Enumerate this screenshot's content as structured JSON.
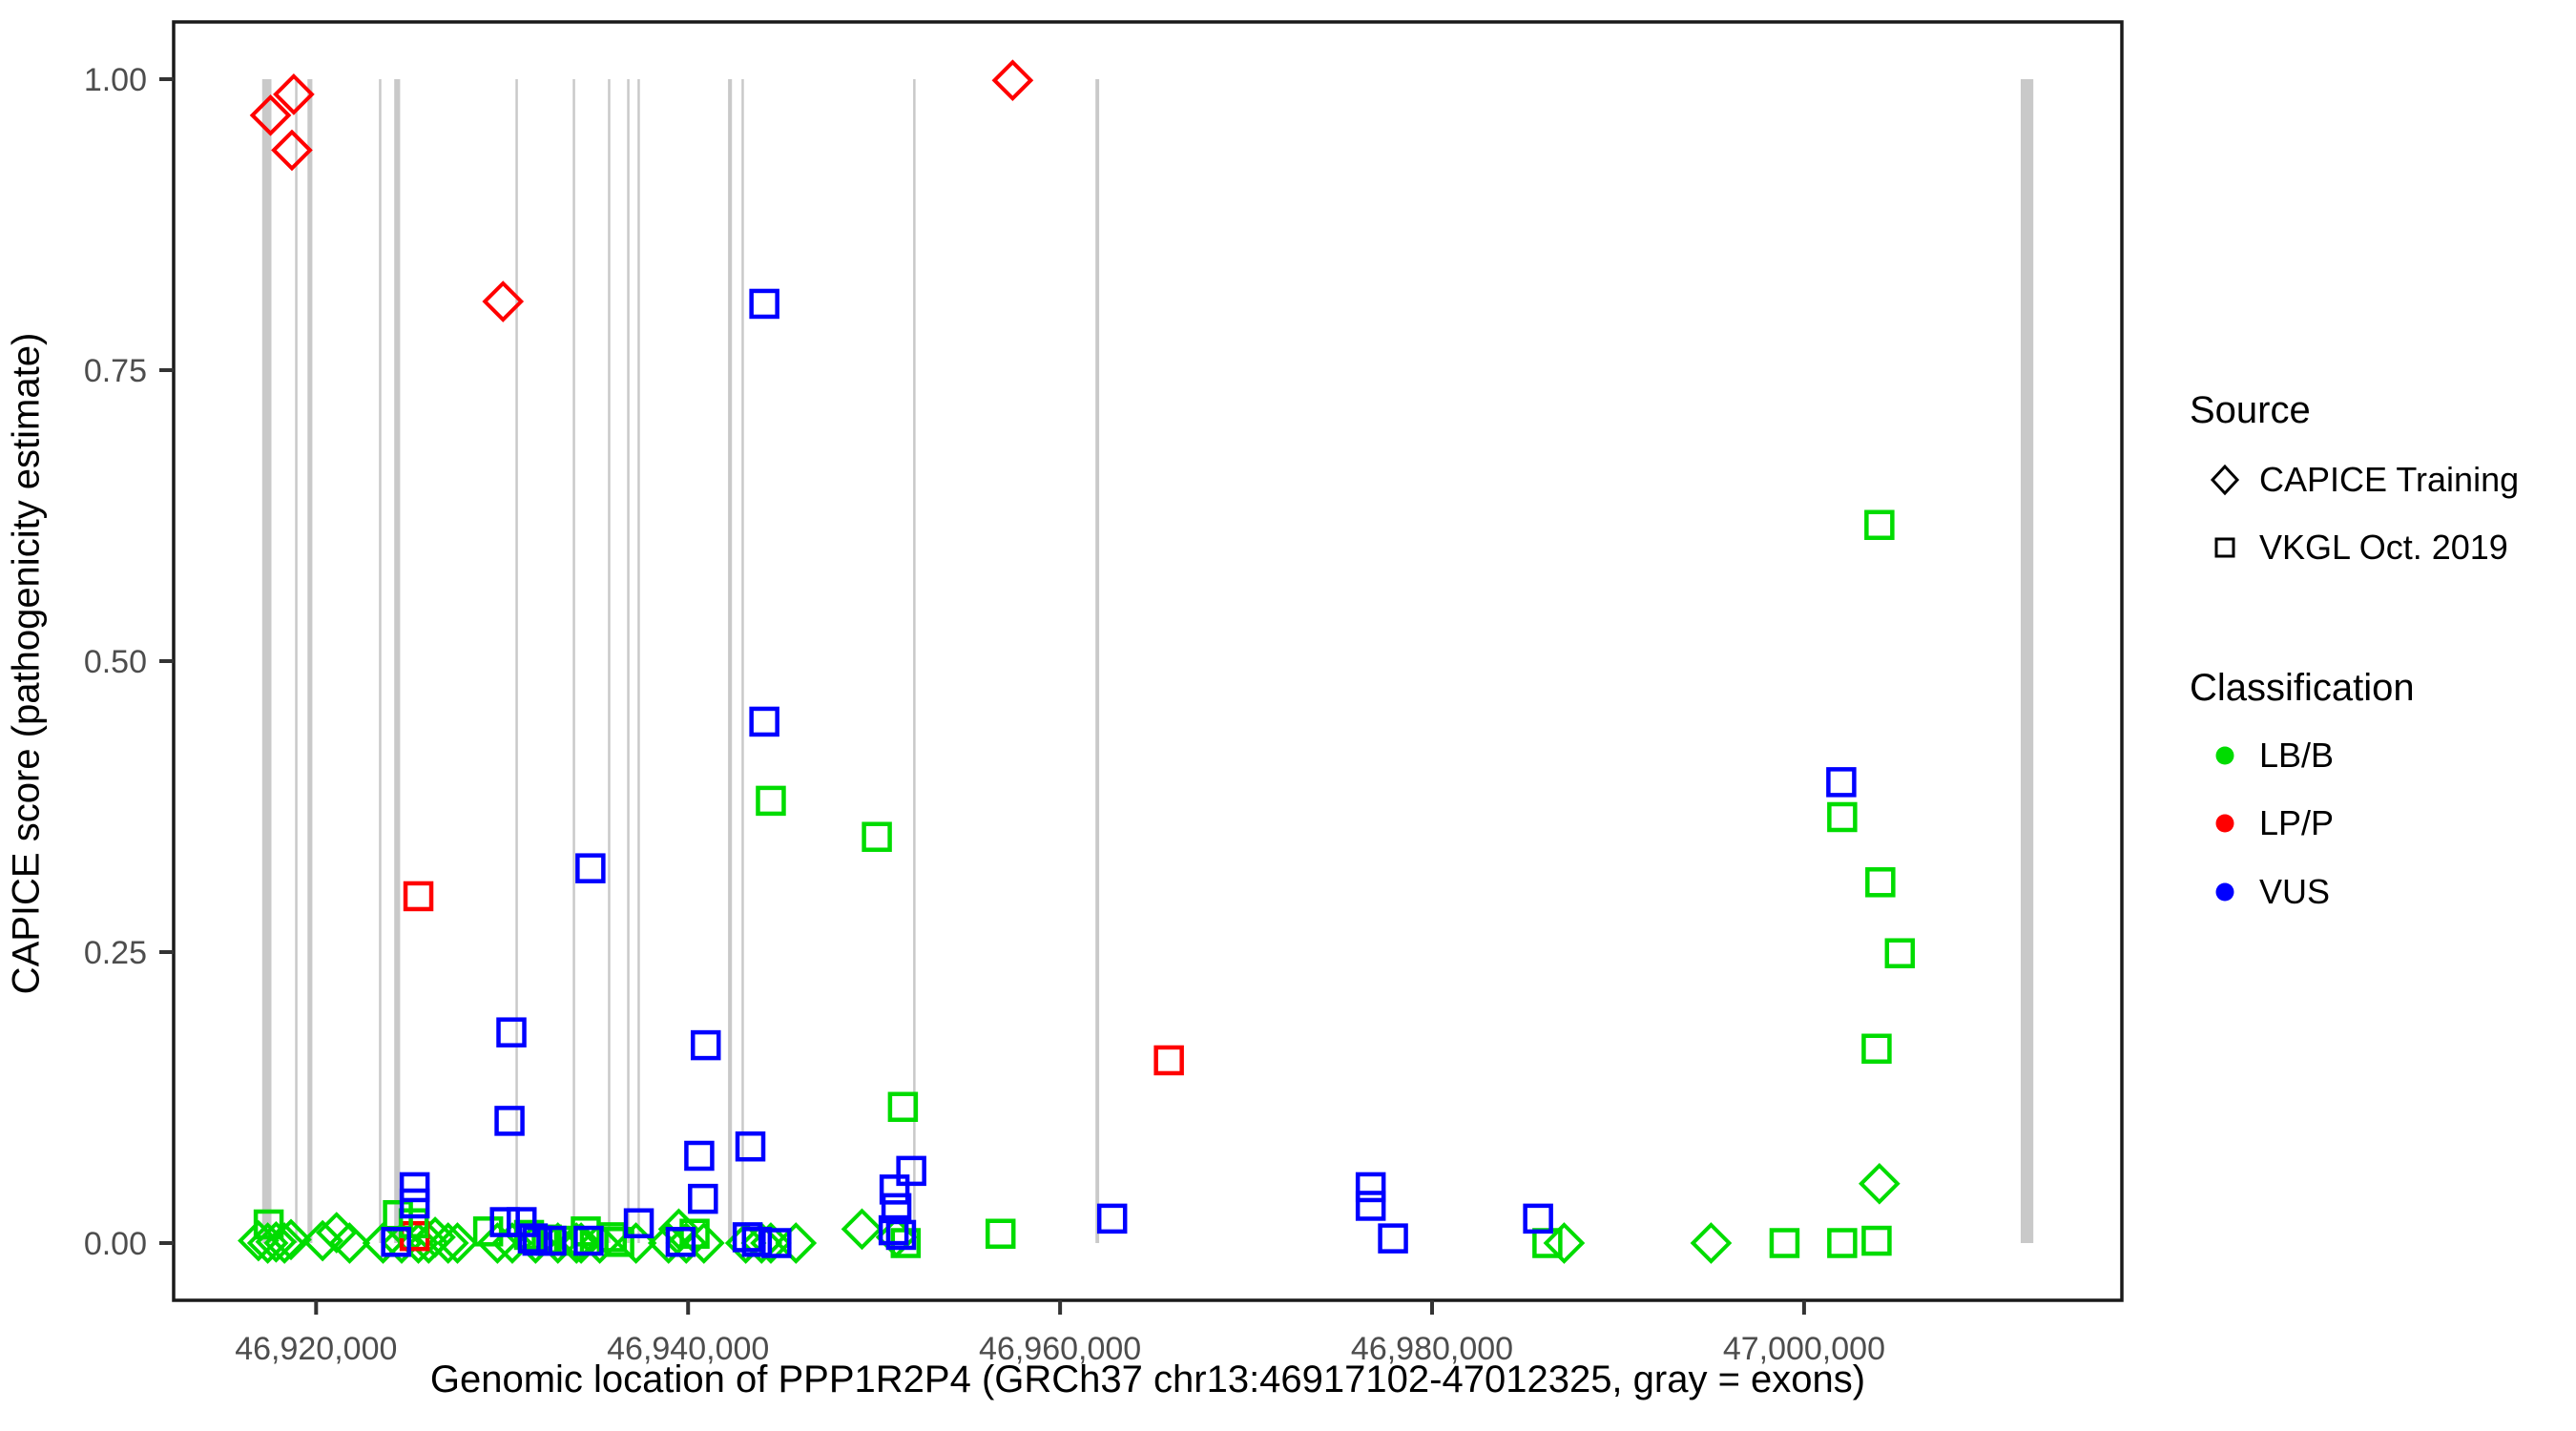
{
  "chart_data": {
    "type": "scatter",
    "title": "",
    "xlabel": "Genomic location of PPP1R2P4 (GRCh37 chr13:46917102-47012325, gray = exons)",
    "ylabel": "CAPICE score (pathogenicity estimate)",
    "xlim": [
      46912341,
      47017086
    ],
    "ylim": [
      -0.05,
      1.05
    ],
    "grid": false,
    "x_ticks": [
      {
        "value": 46920000,
        "label": "46,920,000"
      },
      {
        "value": 46940000,
        "label": "46,940,000"
      },
      {
        "value": 46960000,
        "label": "46,960,000"
      },
      {
        "value": 46980000,
        "label": "46,980,000"
      },
      {
        "value": 47000000,
        "label": "47,000,000"
      }
    ],
    "y_ticks": [
      {
        "value": 0.0,
        "label": "0.00"
      },
      {
        "value": 0.25,
        "label": "0.25"
      },
      {
        "value": 0.5,
        "label": "0.50"
      },
      {
        "value": 0.75,
        "label": "0.75"
      },
      {
        "value": 1.0,
        "label": "1.00"
      }
    ],
    "exon_color": "#C9C9C9",
    "exons": [
      {
        "start": 46917102,
        "end": 46917600
      },
      {
        "start": 46918870,
        "end": 46918980
      },
      {
        "start": 46919540,
        "end": 46919800
      },
      {
        "start": 46923380,
        "end": 46923490
      },
      {
        "start": 46924200,
        "end": 46924520
      },
      {
        "start": 46930720,
        "end": 46930820
      },
      {
        "start": 46933800,
        "end": 46933900
      },
      {
        "start": 46935690,
        "end": 46935800
      },
      {
        "start": 46936720,
        "end": 46936820
      },
      {
        "start": 46937280,
        "end": 46937390
      },
      {
        "start": 46942150,
        "end": 46942360
      },
      {
        "start": 46942870,
        "end": 46942980
      },
      {
        "start": 46952100,
        "end": 46952210
      },
      {
        "start": 46961900,
        "end": 46962100
      },
      {
        "start": 47011650,
        "end": 47012325
      }
    ],
    "class_colors": {
      "LB/B": "#00DC00",
      "LP/P": "#FF0000",
      "VUS": "#0000FF"
    },
    "series": [
      {
        "name": "CAPICE Training",
        "shape": "diamond",
        "groups": [
          {
            "class": "LP/P",
            "points": [
              [
                46917550,
                0.969
              ],
              [
                46918800,
                0.987
              ],
              [
                46918700,
                0.939
              ],
              [
                46930050,
                0.809
              ],
              [
                46957450,
                0.999
              ]
            ]
          },
          {
            "class": "LB/B",
            "points": [
              [
                46916900,
                0.002
              ],
              [
                46917400,
                0.0
              ],
              [
                46917850,
                0.001
              ],
              [
                46918300,
                0.0
              ],
              [
                46918650,
                0.003
              ],
              [
                46920350,
                0.002
              ],
              [
                46921100,
                0.009
              ],
              [
                46921800,
                0.0
              ],
              [
                46923600,
                0.0
              ],
              [
                46924600,
                0.0
              ],
              [
                46925500,
                0.0
              ],
              [
                46926050,
                0.0
              ],
              [
                46926400,
                0.005
              ],
              [
                46927100,
                0.0
              ],
              [
                46927600,
                0.0
              ],
              [
                46929750,
                0.0
              ],
              [
                46930550,
                0.0
              ],
              [
                46931800,
                0.0
              ],
              [
                46933000,
                0.0
              ],
              [
                46934000,
                0.0
              ],
              [
                46934250,
                0.0
              ],
              [
                46935250,
                0.0
              ],
              [
                46937200,
                0.0
              ],
              [
                46938950,
                0.0
              ],
              [
                46939500,
                0.012
              ],
              [
                46939900,
                0.0
              ],
              [
                46940850,
                0.0
              ],
              [
                46943100,
                0.0
              ],
              [
                46943950,
                0.0
              ],
              [
                46944450,
                0.0
              ],
              [
                46945800,
                0.0
              ],
              [
                46949350,
                0.012
              ],
              [
                46951200,
                0.005
              ],
              [
                46987100,
                0.0
              ],
              [
                46995000,
                0.0
              ],
              [
                47004050,
                0.051
              ]
            ]
          }
        ]
      },
      {
        "name": "VKGL Oct. 2019",
        "shape": "square",
        "groups": [
          {
            "class": "LP/P",
            "points": [
              [
                46925500,
                0.298
              ],
              [
                46925300,
                0.006
              ],
              [
                46965850,
                0.157
              ]
            ]
          },
          {
            "class": "LB/B",
            "points": [
              [
                46917450,
                0.016
              ],
              [
                46924400,
                0.024
              ],
              [
                46925250,
                0.017
              ],
              [
                46929250,
                0.01
              ],
              [
                46931450,
                0.007
              ],
              [
                46932400,
                0.003
              ],
              [
                46933600,
                0.002
              ],
              [
                46934500,
                0.01
              ],
              [
                46935900,
                0.005
              ],
              [
                46936300,
                0.001
              ],
              [
                46940350,
                0.008
              ],
              [
                46944450,
                0.38
              ],
              [
                46950150,
                0.349
              ],
              [
                46951550,
                0.117
              ],
              [
                46951700,
                0.0
              ],
              [
                46956800,
                0.008
              ],
              [
                46986200,
                0.0
              ],
              [
                46998950,
                0.0
              ],
              [
                47002050,
                0.366
              ],
              [
                47002050,
                0.0
              ],
              [
                47003900,
                0.167
              ],
              [
                47003900,
                0.002
              ],
              [
                47004050,
                0.617
              ],
              [
                47004100,
                0.31
              ],
              [
                47005150,
                0.249
              ]
            ]
          },
          {
            "class": "VUS",
            "points": [
              [
                46944100,
                0.807
              ],
              [
                46944100,
                0.448
              ],
              [
                46934750,
                0.322
              ],
              [
                46940950,
                0.17
              ],
              [
                46930500,
                0.181
              ],
              [
                46930400,
                0.105
              ],
              [
                46940600,
                0.075
              ],
              [
                46940800,
                0.038
              ],
              [
                46943350,
                0.083
              ],
              [
                46937350,
                0.017
              ],
              [
                46952000,
                0.062
              ],
              [
                46951100,
                0.046
              ],
              [
                46951200,
                0.03
              ],
              [
                46951050,
                0.011
              ],
              [
                46951450,
                0.007
              ],
              [
                46925300,
                0.048
              ],
              [
                46925300,
                0.034
              ],
              [
                46924300,
                0.001
              ],
              [
                46930150,
                0.018
              ],
              [
                46931050,
                0.018
              ],
              [
                46931650,
                0.004
              ],
              [
                46931900,
                0.002
              ],
              [
                46932650,
                0.002
              ],
              [
                46934650,
                0.002
              ],
              [
                46939600,
                0.001
              ],
              [
                46943200,
                0.005
              ],
              [
                46943700,
                0.001
              ],
              [
                46944750,
                0.0
              ],
              [
                46962800,
                0.021
              ],
              [
                46976700,
                0.048
              ],
              [
                46976700,
                0.032
              ],
              [
                46977900,
                0.004
              ],
              [
                46985700,
                0.021
              ],
              [
                47002000,
                0.396
              ]
            ]
          }
        ]
      }
    ]
  },
  "axis": {
    "x_title": "Genomic location of PPP1R2P4 (GRCh37 chr13:46917102-47012325, gray = exons)",
    "y_title": "CAPICE score (pathogenicity estimate)"
  },
  "legend": {
    "source": {
      "title": "Source",
      "items": [
        {
          "label": "CAPICE Training",
          "shape": "diamond"
        },
        {
          "label": "VKGL Oct. 2019",
          "shape": "square"
        }
      ]
    },
    "classification": {
      "title": "Classification",
      "items": [
        {
          "label": "LB/B",
          "color": "#00DC00"
        },
        {
          "label": "LP/P",
          "color": "#FF0000"
        },
        {
          "label": "VUS",
          "color": "#0000FF"
        }
      ]
    }
  }
}
